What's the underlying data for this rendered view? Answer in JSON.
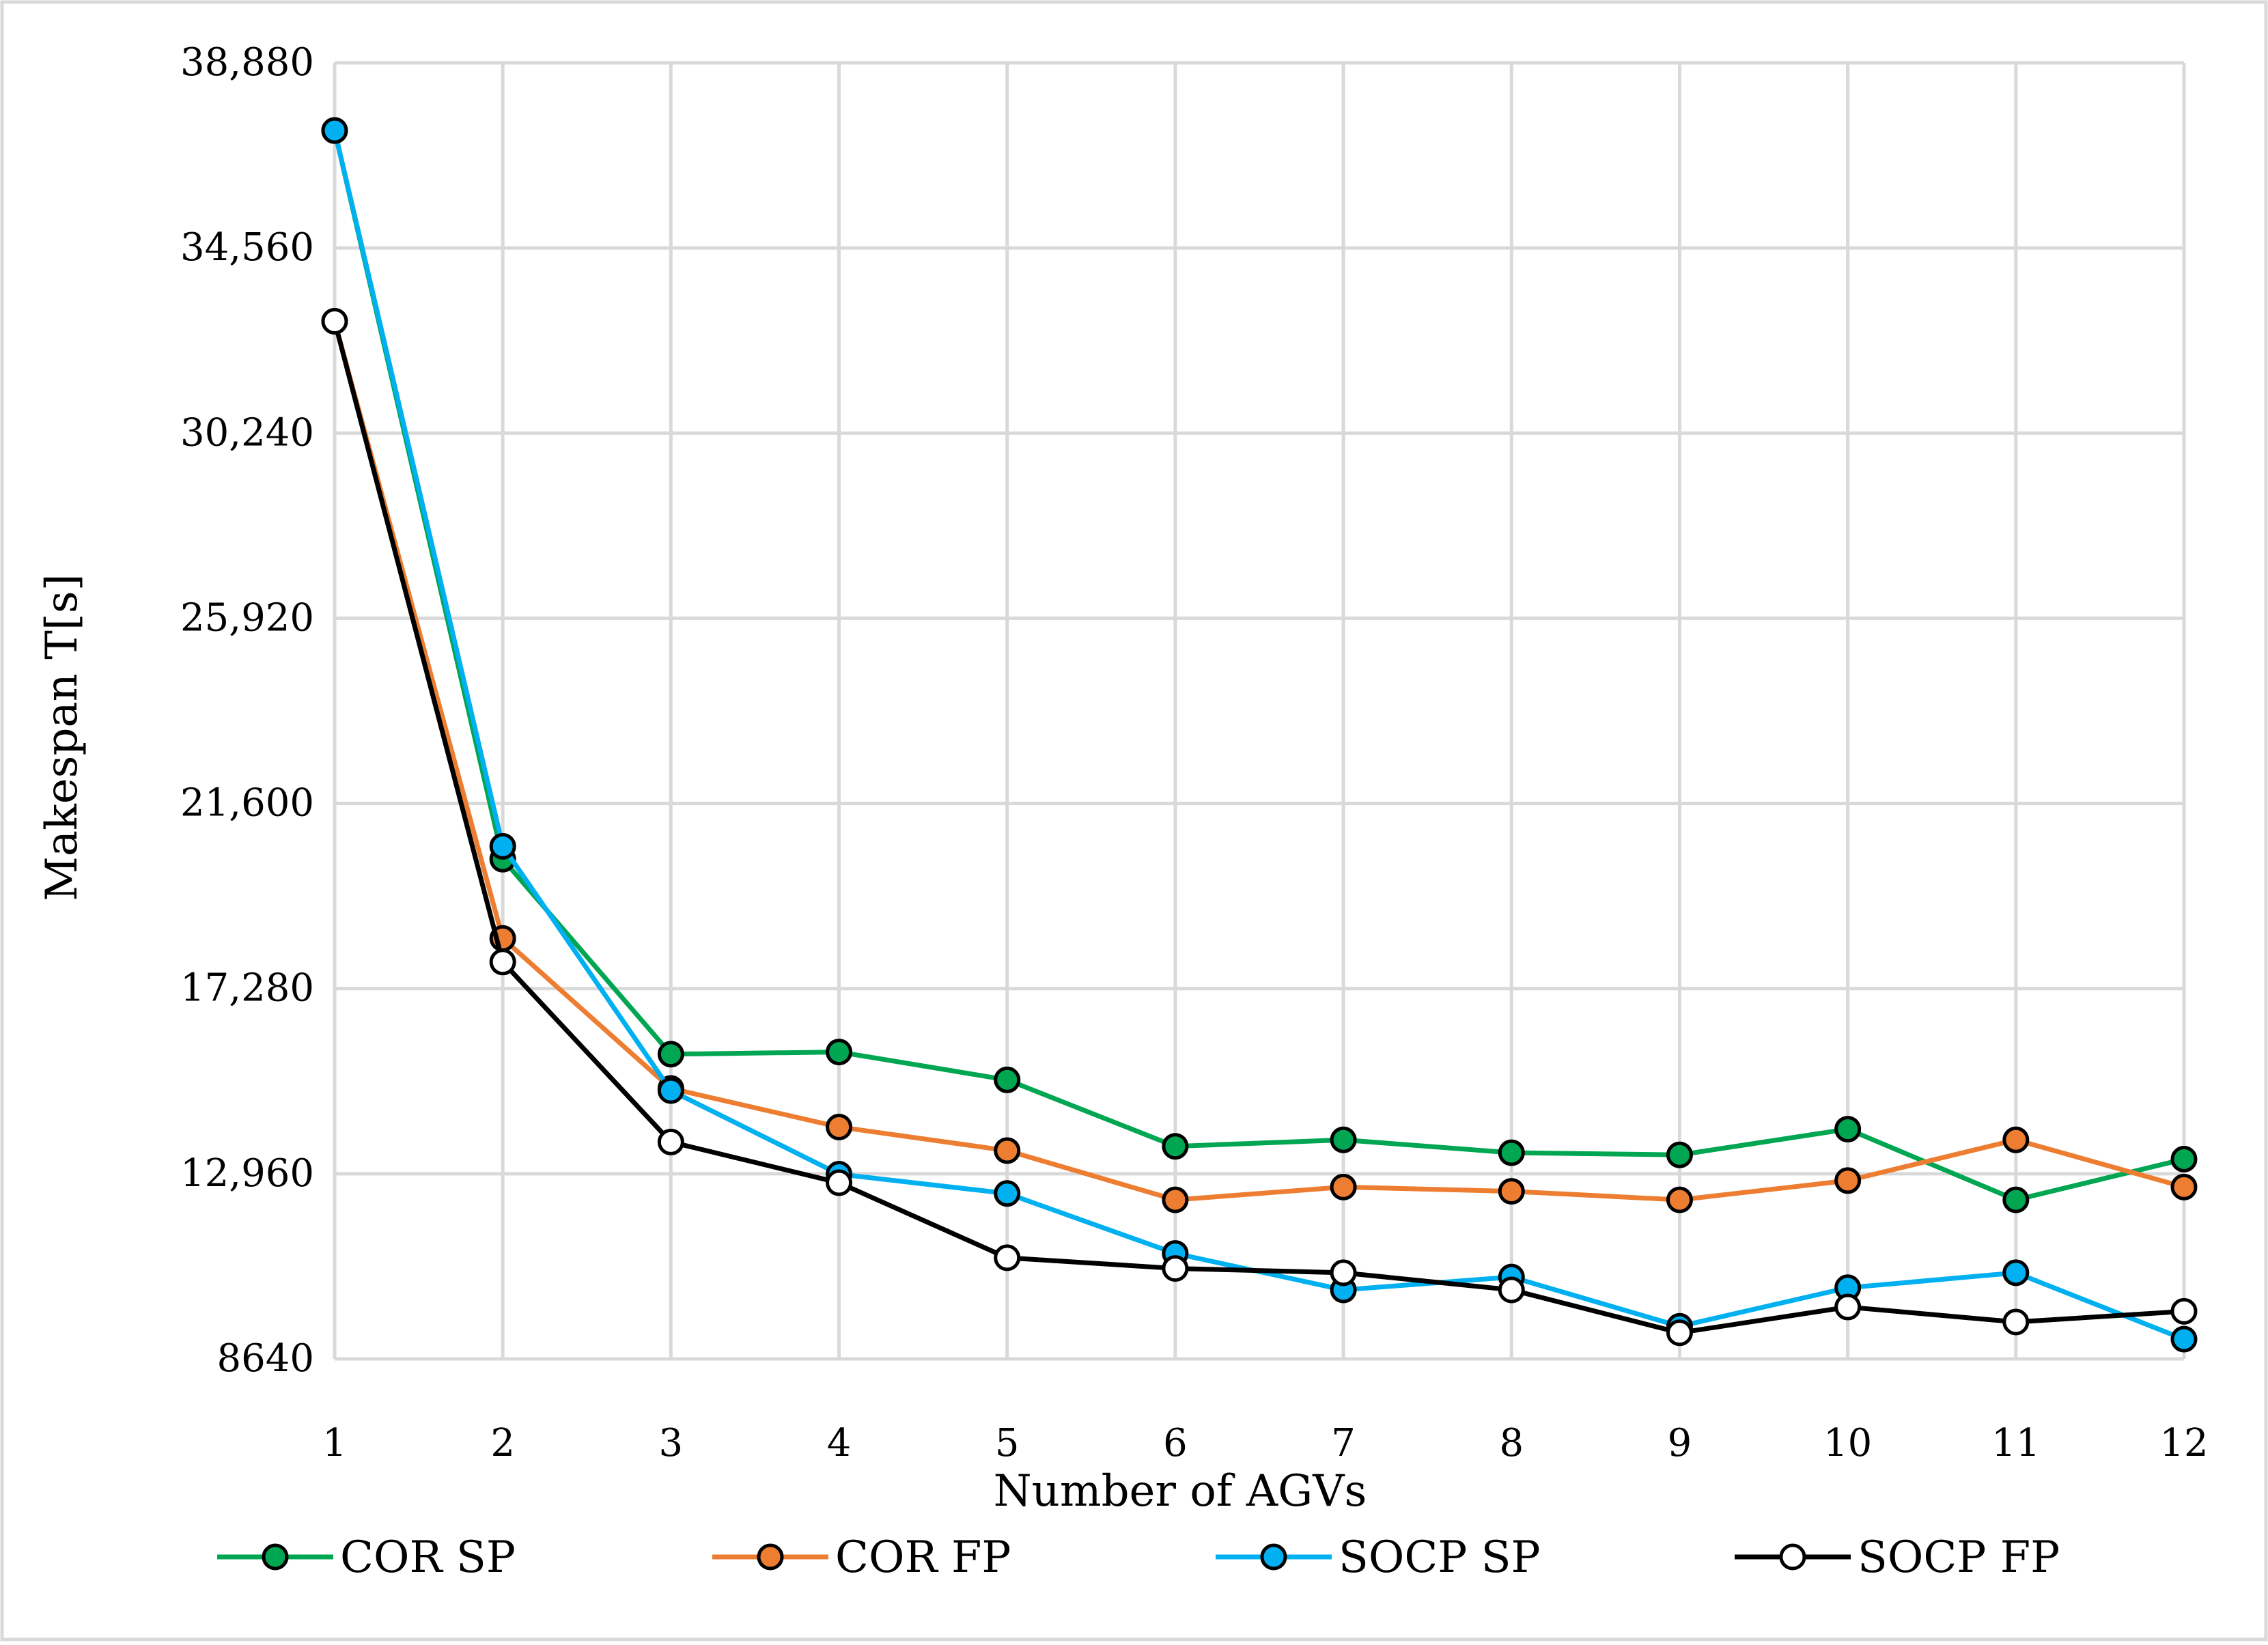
{
  "chart_data": {
    "type": "line",
    "xlabel": "Number of AGVs",
    "ylabel": "Makespan T[s]",
    "x": [
      1,
      2,
      3,
      4,
      5,
      6,
      7,
      8,
      9,
      10,
      11,
      12
    ],
    "xticks": [
      "1",
      "2",
      "3",
      "4",
      "5",
      "6",
      "7",
      "8",
      "9",
      "10",
      "11",
      "12"
    ],
    "ylim": [
      8640,
      38880
    ],
    "yticks": [
      8640,
      12960,
      17280,
      21600,
      25920,
      30240,
      34560,
      38880
    ],
    "ytick_labels": [
      "8640",
      "12,960",
      "17,280",
      "21,600",
      "25,920",
      "30,240",
      "34,560",
      "38,880"
    ],
    "grid": true,
    "legend_position": "bottom",
    "series": [
      {
        "name": "COR SP",
        "color": "#00a651",
        "marker_fill": "#00a651",
        "values": [
          37300,
          20300,
          15750,
          15800,
          15150,
          13600,
          13750,
          13450,
          13400,
          14000,
          12350,
          13300
        ]
      },
      {
        "name": "COR FP",
        "color": "#ed7d31",
        "marker_fill": "#ed7d31",
        "values": [
          32850,
          18450,
          14950,
          14050,
          13500,
          12350,
          12650,
          12550,
          12350,
          12800,
          13750,
          12650
        ]
      },
      {
        "name": "SOCP SP",
        "color": "#00b0f0",
        "marker_fill": "#00b0f0",
        "values": [
          37300,
          20600,
          14900,
          12950,
          12500,
          11100,
          10250,
          10550,
          9400,
          10300,
          10650,
          9100
        ]
      },
      {
        "name": "SOCP FP",
        "color": "#000000",
        "marker_fill": "#ffffff",
        "values": [
          32850,
          17900,
          13700,
          12750,
          11000,
          10750,
          10650,
          10250,
          9250,
          9850,
          9500,
          9750
        ]
      }
    ]
  }
}
